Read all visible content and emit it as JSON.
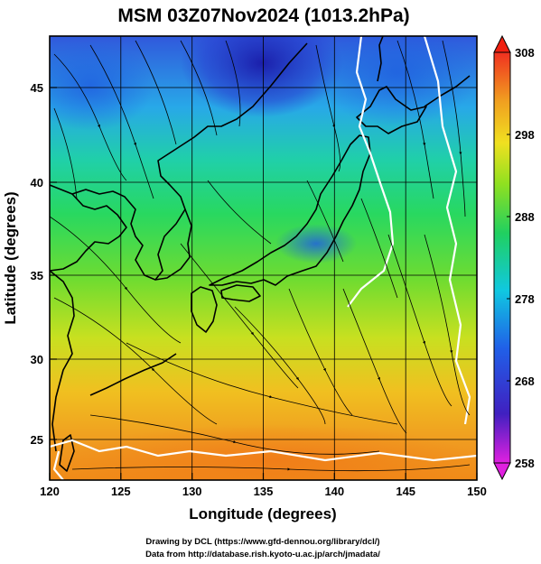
{
  "title": "MSM 03Z07Nov2024 (1013.2hPa)",
  "xlabel": "Longitude (degrees)",
  "ylabel": "Latitude  (degrees)",
  "x_ticks": [
    "120",
    "125",
    "130",
    "135",
    "140",
    "145",
    "150"
  ],
  "y_ticks": [
    "25",
    "30",
    "35",
    "40",
    "45"
  ],
  "colorbar": {
    "labels": [
      "308",
      "298",
      "288",
      "278",
      "268",
      "258"
    ],
    "min": 258,
    "max": 308,
    "unit_hint": "K"
  },
  "credits": {
    "line1": "Drawing by DCL (https://www.gfd-dennou.org/library/dcl/)",
    "line2": "Data from http://database.rish.kyoto-u.ac.jp/arch/jmadata/"
  },
  "map": {
    "lon_range": [
      120,
      150
    ],
    "lat_range": [
      22.5,
      47.8
    ],
    "field": "temperature",
    "overlay": "streamlines",
    "colors": {
      "cold": "#2a3fd8",
      "cool": "#1fc8e0",
      "mild": "#2fd060",
      "warm": "#e6e620",
      "hot": "#f09020"
    }
  }
}
